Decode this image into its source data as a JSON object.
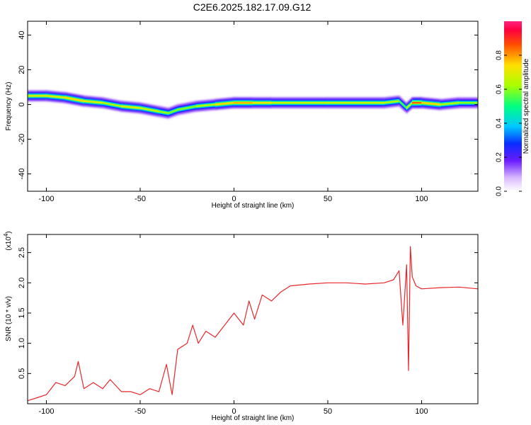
{
  "title": "C2E6.2025.182.17.09.G12",
  "chart_data": [
    {
      "type": "heatmap",
      "xlabel": "Height of straight line (km)",
      "ylabel": "Frequency (Hz)",
      "xlim": [
        -110,
        130
      ],
      "ylim": [
        -50,
        48
      ],
      "xticks": [
        -100,
        -50,
        0,
        50,
        100
      ],
      "yticks": [
        40,
        20,
        0,
        -20,
        -40
      ],
      "colorbar": {
        "label": "Normalized spectral amplitude",
        "range": [
          0.0,
          1.0
        ],
        "ticks": [
          0.0,
          0.2,
          0.4,
          0.6,
          0.8
        ],
        "tick_labels": [
          "0.0",
          "0.2",
          "0.4",
          "0.6",
          "0.8"
        ]
      },
      "ridge": {
        "x": [
          -110,
          -100,
          -90,
          -80,
          -70,
          -60,
          -50,
          -40,
          -35,
          -30,
          -20,
          -10,
          0,
          10,
          20,
          50,
          80,
          88,
          92,
          95,
          100,
          110,
          120,
          130
        ],
        "frequency": [
          5,
          5,
          4,
          2,
          1,
          -1,
          -2,
          -4,
          -5,
          -3,
          -1,
          0,
          1,
          1,
          1,
          1,
          1,
          2,
          -2,
          1,
          1,
          0,
          1,
          1
        ],
        "amplitude": [
          0.7,
          0.7,
          0.7,
          0.8,
          0.6,
          0.7,
          0.7,
          0.65,
          0.6,
          0.6,
          0.6,
          0.7,
          0.8,
          0.75,
          0.7,
          0.65,
          0.7,
          0.6,
          0.5,
          0.85,
          0.85,
          0.65,
          0.65,
          0.55
        ]
      }
    },
    {
      "type": "line",
      "xlabel": "Height of straight line (km)",
      "ylabel": "SNR (10 * v/v)",
      "y_multiplier": "(x10^4)",
      "xlim": [
        -110,
        130
      ],
      "ylim": [
        0,
        2.8
      ],
      "xticks": [
        -100,
        -50,
        0,
        50,
        100
      ],
      "yticks": [
        0.5,
        1.0,
        1.5,
        2.0,
        2.5
      ],
      "ytick_labels": [
        "0.5",
        "1.0",
        "1.5",
        "2.0",
        "2.5"
      ],
      "line_color": "#e8262a",
      "series": [
        {
          "x": [
            -110,
            -105,
            -100,
            -95,
            -90,
            -85,
            -83,
            -80,
            -75,
            -70,
            -66,
            -60,
            -55,
            -50,
            -45,
            -40,
            -36,
            -33,
            -30,
            -25,
            -22,
            -19,
            -15,
            -10,
            -5,
            0,
            5,
            8,
            11,
            15,
            20,
            25,
            30,
            40,
            50,
            60,
            70,
            80,
            85,
            88,
            90,
            92,
            93,
            94,
            95,
            97,
            100,
            110,
            120,
            130
          ],
          "y": [
            0.05,
            0.1,
            0.15,
            0.35,
            0.3,
            0.45,
            0.7,
            0.25,
            0.35,
            0.25,
            0.4,
            0.2,
            0.2,
            0.15,
            0.25,
            0.2,
            0.65,
            0.15,
            0.9,
            1.0,
            1.3,
            1.0,
            1.2,
            1.1,
            1.3,
            1.5,
            1.3,
            1.7,
            1.4,
            1.8,
            1.7,
            1.85,
            1.95,
            1.98,
            2.0,
            2.0,
            1.98,
            2.0,
            2.05,
            2.2,
            1.3,
            2.3,
            0.55,
            2.6,
            2.1,
            1.95,
            1.9,
            1.92,
            1.93,
            1.9
          ]
        }
      ]
    }
  ]
}
